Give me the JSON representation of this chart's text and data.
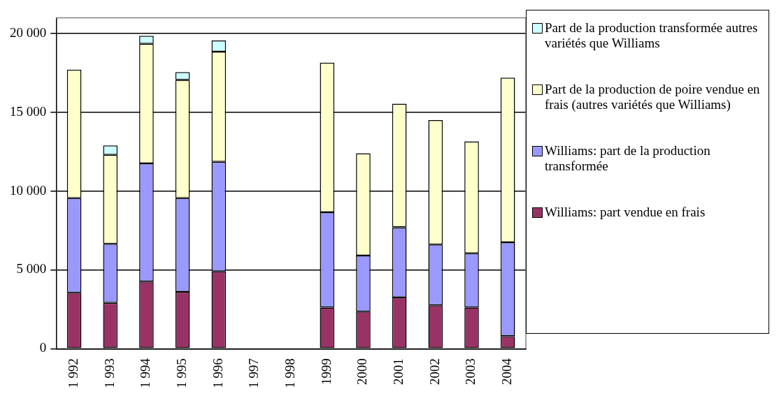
{
  "chart_data": {
    "type": "bar",
    "stacked": true,
    "categories": [
      "1 992",
      "1 993",
      "1 994",
      "1 995",
      "1 996",
      "1 997",
      "1 998",
      "1999",
      "2000",
      "2001",
      "2002",
      "2003",
      "2004"
    ],
    "series": [
      {
        "name": "Williams: part vendue en frais",
        "color": "#993366",
        "values": [
          3550,
          2900,
          4250,
          3600,
          4900,
          null,
          null,
          2600,
          2350,
          3250,
          2750,
          2600,
          800
        ]
      },
      {
        "name": "Williams: part de la production transformée",
        "color": "#9999ff",
        "values": [
          6000,
          3750,
          7500,
          5950,
          6950,
          null,
          null,
          6050,
          3550,
          4450,
          3850,
          3450,
          5950
        ]
      },
      {
        "name": "Part de la production de poire vendue en frais (autres variétés que Williams)",
        "color": "#ffffcc",
        "values": [
          8150,
          5650,
          7600,
          7500,
          7000,
          null,
          null,
          9500,
          6500,
          7850,
          7900,
          7100,
          10450
        ]
      },
      {
        "name": "Part de la production transformée autres variétés que Williams",
        "color": "#ccffff",
        "values": [
          null,
          600,
          500,
          500,
          700,
          null,
          null,
          null,
          null,
          null,
          null,
          null,
          null
        ]
      }
    ],
    "ylim": [
      0,
      21000
    ],
    "yticks": [
      {
        "value": 0,
        "label": "0"
      },
      {
        "value": 5000,
        "label": "5 000"
      },
      {
        "value": 10000,
        "label": "10 000"
      },
      {
        "value": 15000,
        "label": "15 000"
      },
      {
        "value": 20000,
        "label": "20 000"
      }
    ],
    "grid": "y",
    "legend": "right"
  }
}
